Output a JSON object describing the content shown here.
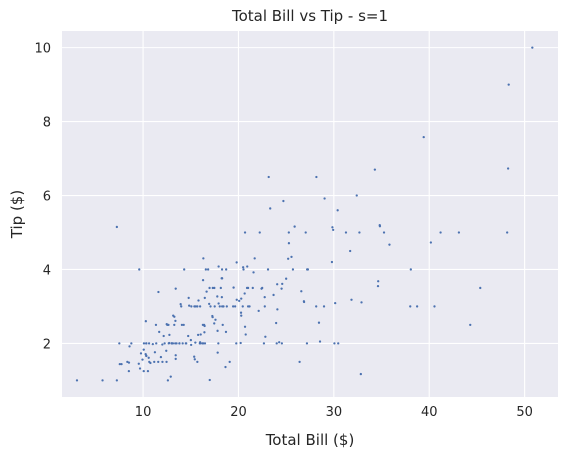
{
  "chart_data": {
    "type": "scatter",
    "title": "Total Bill vs Tip - s=1",
    "xlabel": "Total Bill ($)",
    "ylabel": "Tip ($)",
    "xlim": [
      1.5,
      53.5
    ],
    "ylim": [
      0.55,
      10.45
    ],
    "xticks": [
      10,
      20,
      30,
      40,
      50
    ],
    "yticks": [
      2,
      4,
      6,
      8,
      10
    ],
    "grid": true,
    "background_color": "#EAEAF2",
    "grid_color": "#FFFFFF",
    "point_color": "#4C72B0",
    "x": [
      16.99,
      10.34,
      21.01,
      23.68,
      24.59,
      25.29,
      8.77,
      26.88,
      15.04,
      14.78,
      10.27,
      35.26,
      15.42,
      18.43,
      14.83,
      21.58,
      10.33,
      16.29,
      16.97,
      20.65,
      17.92,
      20.29,
      15.77,
      39.42,
      19.82,
      17.81,
      13.37,
      12.69,
      21.7,
      19.65,
      9.55,
      18.35,
      15.06,
      20.69,
      17.78,
      24.06,
      16.31,
      16.93,
      18.69,
      31.27,
      16.04,
      17.46,
      13.94,
      9.68,
      30.4,
      18.29,
      22.23,
      32.4,
      28.55,
      18.04,
      12.54,
      10.29,
      34.81,
      9.94,
      25.56,
      19.49,
      38.01,
      26.41,
      11.24,
      48.27,
      20.29,
      13.81,
      11.02,
      18.29,
      17.59,
      20.08,
      16.45,
      3.07,
      20.23,
      15.01,
      12.02,
      17.07,
      26.86,
      25.28,
      14.73,
      10.51,
      17.92,
      27.2,
      22.76,
      17.29,
      19.44,
      16.66,
      10.07,
      32.68,
      15.98,
      34.83,
      13.03,
      18.28,
      24.71,
      21.16,
      28.97,
      22.49,
      5.75,
      16.32,
      22.75,
      40.17,
      27.28,
      12.03,
      21.01,
      12.46,
      11.35,
      15.38,
      44.3,
      22.42,
      20.92,
      15.36,
      20.49,
      25.21,
      18.24,
      14.31,
      14.0,
      7.25,
      38.07,
      23.95,
      25.71,
      17.31,
      29.93,
      10.65,
      12.43,
      24.08,
      11.69,
      13.42,
      14.26,
      15.95,
      12.48,
      29.8,
      8.52,
      14.52,
      11.38,
      22.82,
      19.08,
      20.27,
      11.17,
      12.26,
      18.26,
      8.51,
      10.33,
      14.15,
      16.0,
      13.16,
      17.47,
      34.3,
      41.19,
      27.05,
      16.43,
      8.35,
      18.64,
      11.87,
      9.78,
      7.51,
      14.07,
      13.13,
      17.26,
      24.55,
      19.77,
      29.85,
      48.17,
      25.0,
      13.39,
      16.49,
      21.5,
      12.66,
      16.21,
      13.81,
      17.51,
      24.52,
      20.76,
      31.71,
      10.59,
      10.63,
      50.81,
      15.81,
      7.25,
      31.85,
      16.82,
      32.9,
      17.89,
      14.48,
      9.6,
      34.63,
      34.65,
      23.33,
      45.35,
      23.17,
      40.55,
      20.69,
      20.9,
      30.46,
      18.15,
      23.1,
      15.69,
      19.81,
      28.44,
      15.48,
      16.58,
      7.56,
      10.34,
      43.11,
      13.0,
      13.51,
      18.71,
      12.74,
      13.0,
      16.4,
      20.53,
      16.47,
      26.59,
      38.73,
      24.27,
      12.76,
      30.06,
      25.89,
      48.33,
      13.27,
      28.17,
      12.9,
      28.15,
      11.59,
      7.74,
      30.14,
      12.16,
      13.42,
      8.58,
      15.98,
      13.42,
      16.27,
      10.09,
      20.45,
      13.28,
      22.12,
      24.01,
      15.69,
      11.61,
      10.77,
      15.53,
      10.07,
      12.6,
      32.83,
      35.83,
      29.03,
      27.18,
      22.67,
      17.82,
      18.78
    ],
    "y": [
      1.01,
      1.66,
      3.5,
      3.31,
      3.61,
      4.71,
      2.0,
      3.12,
      1.96,
      3.23,
      1.71,
      5.0,
      1.57,
      3.0,
      3.02,
      3.92,
      1.67,
      3.71,
      3.5,
      3.35,
      4.08,
      2.75,
      2.23,
      7.58,
      3.18,
      2.34,
      2.0,
      2.0,
      4.3,
      3.0,
      1.45,
      2.5,
      3.0,
      2.45,
      3.27,
      3.6,
      2.0,
      3.07,
      2.31,
      5.0,
      2.24,
      2.54,
      3.06,
      1.32,
      5.6,
      3.0,
      5.0,
      6.0,
      2.05,
      3.0,
      2.5,
      2.6,
      5.2,
      1.56,
      4.34,
      3.51,
      3.0,
      1.5,
      1.76,
      6.73,
      3.21,
      2.0,
      1.98,
      3.76,
      2.64,
      3.15,
      2.47,
      1.0,
      2.01,
      2.09,
      1.97,
      3.0,
      3.14,
      5.0,
      2.2,
      1.25,
      3.08,
      4.0,
      3.0,
      2.71,
      3.0,
      3.4,
      1.83,
      5.0,
      2.03,
      5.17,
      2.0,
      4.0,
      5.85,
      3.0,
      3.0,
      3.5,
      1.0,
      4.3,
      3.25,
      4.73,
      4.0,
      1.5,
      3.0,
      1.5,
      2.5,
      3.0,
      2.5,
      3.48,
      4.08,
      1.64,
      4.06,
      4.29,
      3.76,
      4.0,
      3.0,
      1.0,
      4.0,
      2.55,
      4.0,
      3.5,
      5.07,
      1.5,
      1.8,
      2.92,
      2.31,
      1.68,
      2.5,
      2.0,
      2.52,
      4.2,
      1.48,
      2.0,
      2.0,
      2.18,
      1.5,
      2.83,
      1.5,
      2.0,
      3.25,
      1.25,
      2.0,
      2.0,
      2.0,
      2.75,
      3.5,
      6.7,
      5.0,
      5.0,
      2.3,
      1.5,
      1.36,
      1.63,
      1.73,
      2.0,
      2.5,
      2.0,
      2.74,
      2.0,
      2.0,
      5.14,
      5.0,
      3.75,
      2.61,
      2.0,
      3.5,
      2.5,
      2.0,
      2.0,
      3.0,
      3.48,
      2.24,
      4.5,
      1.61,
      2.0,
      10.0,
      3.16,
      5.15,
      3.18,
      4.0,
      3.11,
      2.0,
      2.0,
      4.0,
      3.55,
      3.68,
      5.65,
      3.5,
      6.5,
      3.0,
      5.0,
      3.5,
      2.0,
      3.5,
      4.0,
      1.5,
      4.19,
      2.56,
      2.02,
      4.0,
      1.44,
      2.0,
      5.0,
      2.0,
      2.0,
      4.0,
      2.01,
      2.0,
      2.5,
      4.0,
      3.23,
      3.41,
      3.0,
      2.03,
      2.23,
      2.0,
      5.16,
      9.0,
      2.5,
      6.5,
      1.1,
      3.0,
      1.5,
      1.44,
      3.09,
      2.2,
      3.48,
      1.92,
      3.0,
      1.58,
      2.5,
      2.0,
      3.0,
      2.72,
      2.88,
      2.0,
      3.0,
      3.39,
      1.47,
      3.0,
      1.25,
      1.0,
      1.17,
      4.67,
      5.92,
      2.0,
      2.0,
      1.75,
      3.0
    ]
  }
}
